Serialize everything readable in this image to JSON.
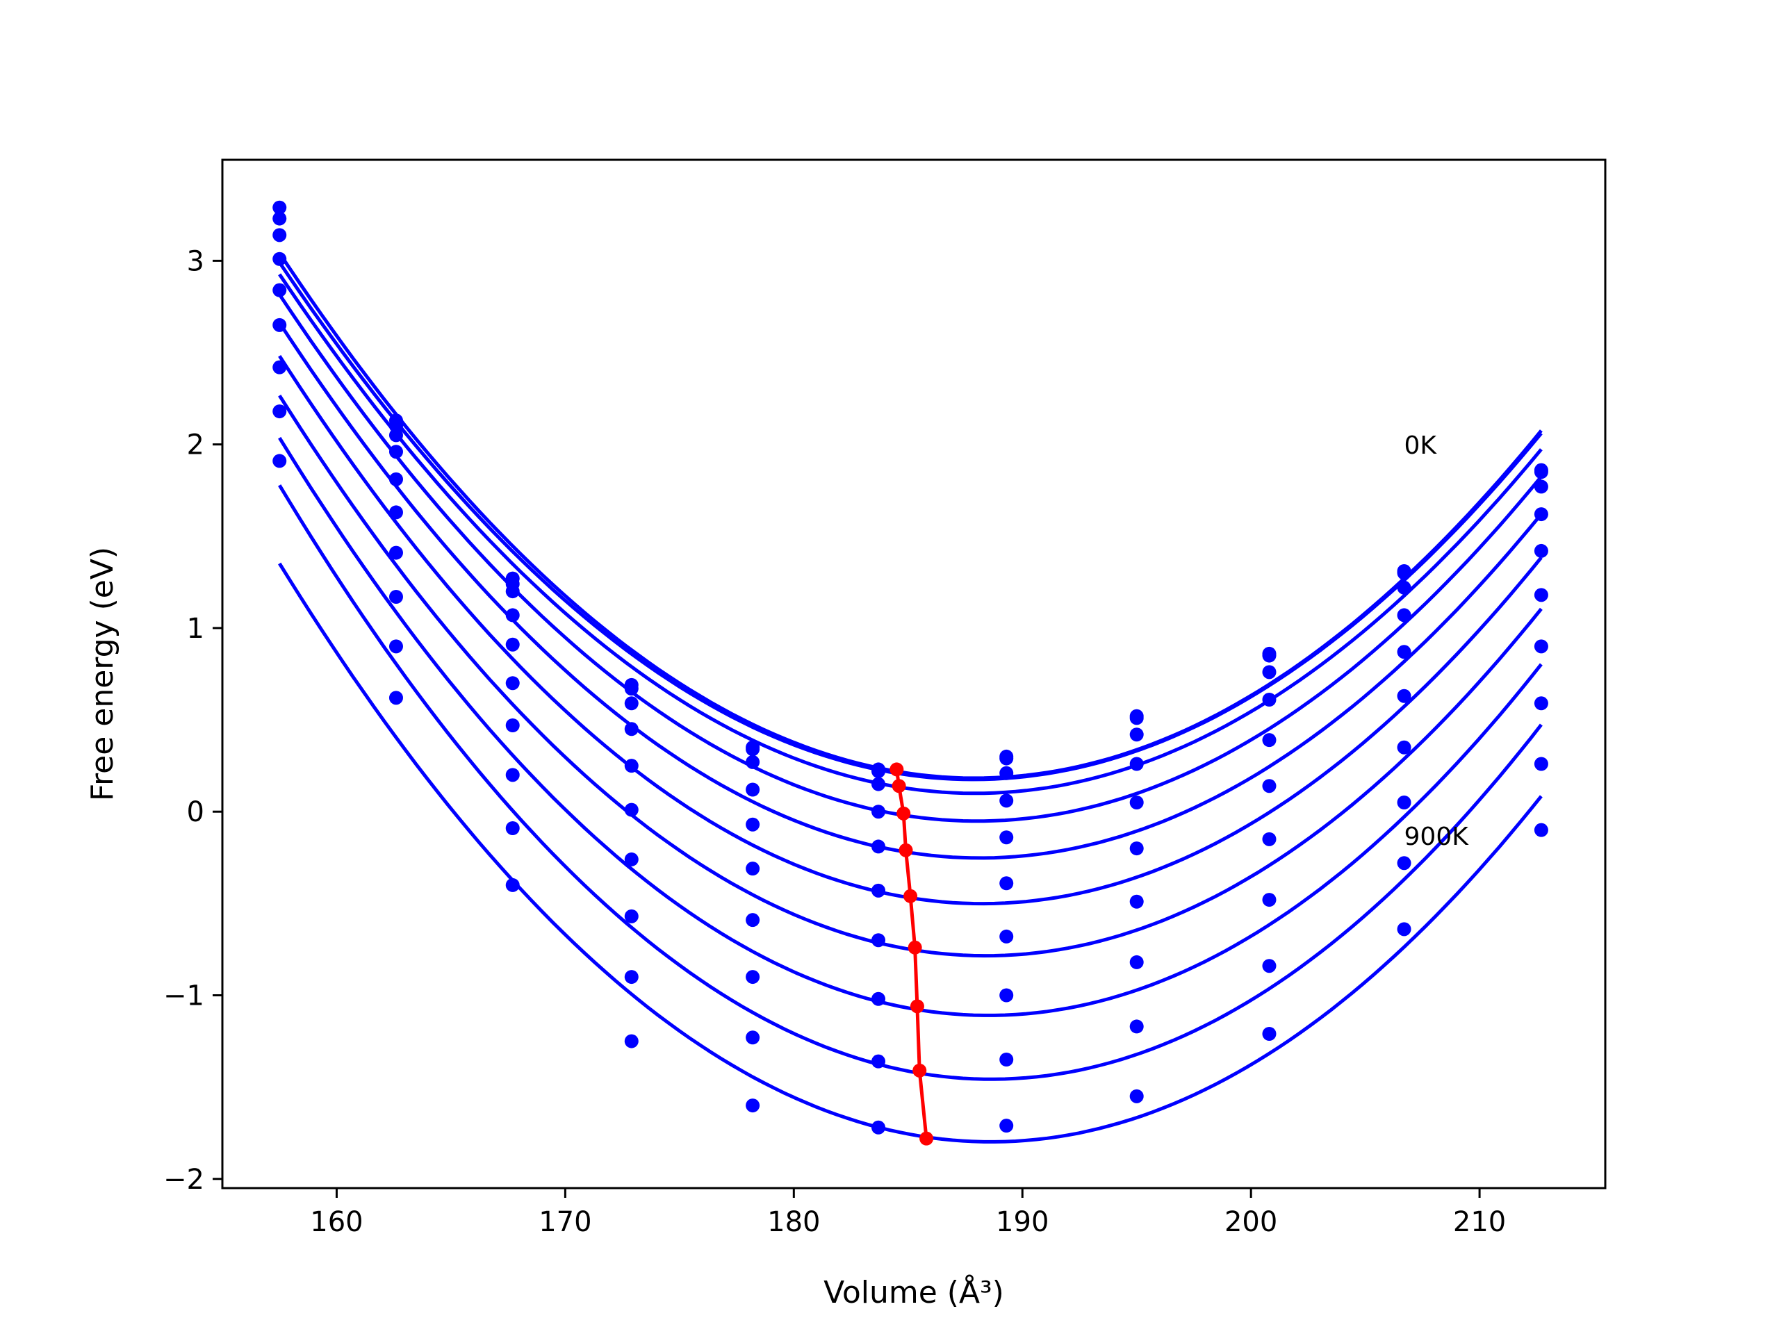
{
  "chart_data": {
    "type": "line",
    "title": "",
    "xlabel": "Volume (Å³)",
    "ylabel": "Free energy (eV)",
    "xlim": [
      155,
      215.5
    ],
    "ylim": [
      -2.05,
      3.55
    ],
    "xticks": [
      160,
      170,
      180,
      190,
      200,
      210
    ],
    "yticks": [
      -2,
      -1,
      0,
      1,
      2,
      3
    ],
    "xtick_labels": [
      "160",
      "170",
      "180",
      "190",
      "200",
      "210"
    ],
    "ytick_labels": [
      "−2",
      "−1",
      "0",
      "1",
      "2",
      "3"
    ],
    "grid": false,
    "legend": "none",
    "x": [
      157.5,
      162.6,
      167.7,
      172.9,
      178.2,
      183.7,
      189.3,
      195.0,
      200.8,
      206.7,
      212.7
    ],
    "series": [
      {
        "values": [
          3.29,
          2.13,
          1.27,
          0.69,
          0.35,
          0.23,
          0.3,
          0.52,
          0.86,
          1.31,
          1.86
        ]
      },
      {
        "values": [
          3.23,
          2.1,
          1.24,
          0.67,
          0.34,
          0.22,
          0.29,
          0.51,
          0.85,
          1.3,
          1.85
        ]
      },
      {
        "values": [
          3.14,
          2.05,
          1.2,
          0.59,
          0.27,
          0.15,
          0.21,
          0.42,
          0.76,
          1.22,
          1.77
        ]
      },
      {
        "values": [
          3.01,
          1.96,
          1.07,
          0.45,
          0.12,
          0.0,
          0.06,
          0.26,
          0.61,
          1.07,
          1.62
        ]
      },
      {
        "values": [
          2.84,
          1.81,
          0.91,
          0.25,
          -0.07,
          -0.19,
          -0.14,
          0.05,
          0.39,
          0.87,
          1.42
        ]
      },
      {
        "values": [
          2.65,
          1.63,
          0.7,
          0.01,
          -0.31,
          -0.43,
          -0.39,
          -0.2,
          0.14,
          0.63,
          1.18
        ]
      },
      {
        "values": [
          2.42,
          1.41,
          0.47,
          -0.26,
          -0.59,
          -0.7,
          -0.68,
          -0.49,
          -0.15,
          0.35,
          0.9
        ]
      },
      {
        "values": [
          2.18,
          1.17,
          0.2,
          -0.57,
          -0.9,
          -1.02,
          -1.0,
          -0.82,
          -0.48,
          0.05,
          0.59
        ]
      },
      {
        "values": [
          1.91,
          0.9,
          -0.09,
          -0.9,
          -1.23,
          -1.36,
          -1.35,
          -1.17,
          -0.84,
          -0.28,
          0.26
        ]
      },
      {
        "values": [
          null,
          0.62,
          -0.4,
          -1.25,
          -1.6,
          -1.72,
          -1.71,
          -1.55,
          -1.21,
          -0.64,
          -0.1
        ]
      }
    ],
    "minimum_line": {
      "x": [
        184.5,
        184.6,
        184.8,
        184.9,
        185.1,
        185.3,
        185.4,
        185.5,
        185.8
      ],
      "y": [
        0.23,
        0.14,
        -0.01,
        -0.21,
        -0.46,
        -0.74,
        -1.06,
        -1.41,
        -1.78
      ]
    },
    "annotations": [
      {
        "text": "0K",
        "x": 206.7,
        "y": 1.95
      },
      {
        "text": "900K",
        "x": 206.7,
        "y": -0.18
      }
    ],
    "colors": {
      "curves": "#0000ff",
      "minimum_line": "#ff0000",
      "frame": "#000000"
    }
  }
}
